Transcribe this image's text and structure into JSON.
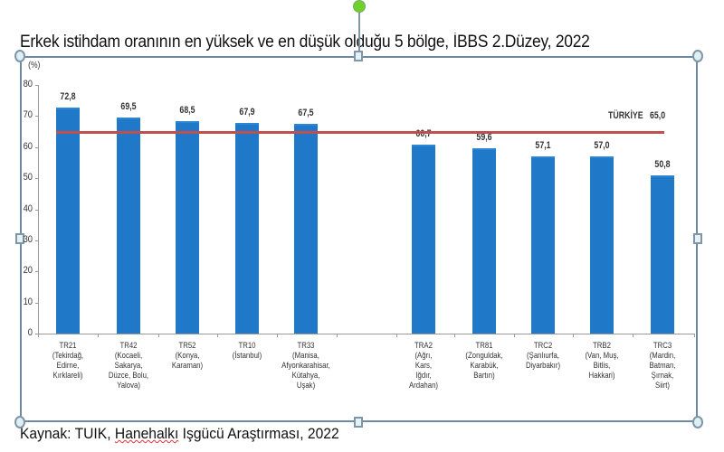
{
  "title": "Erkek istihdam oranının en yüksek ve en düşük olduğu  5 bölge, İBBS 2.Düzey, 2022",
  "source": {
    "prefix": "Kaynak: TUIK, ",
    "underlined": "Hanehalkı",
    "suffix": " Işgücü Araştırması, 2022"
  },
  "colors": {
    "bar": "#1f78c8",
    "reference_line": "#c0504d",
    "selection_border": "#6f8aa0",
    "rotation_handle": "#6fd12a"
  },
  "chart_data": {
    "type": "bar",
    "title": "Erkek istihdam oranının en yüksek ve en düşük olduğu  5 bölge, İBBS 2.Düzey, 2022",
    "xlabel": "",
    "ylabel": "(%)",
    "ylim": [
      0,
      80
    ],
    "yticks": [
      "0",
      "10",
      "20",
      "30",
      "40",
      "50",
      "60",
      "70",
      "80"
    ],
    "grid": false,
    "legend": null,
    "categories": [
      "TR21",
      "TR42",
      "TR52",
      "TR10",
      "TR33",
      "TRA2",
      "TR81",
      "TRC2",
      "TRB2",
      "TRC3"
    ],
    "category_details": [
      [
        "TR21",
        "(Tekirdağ,",
        "Edirne,",
        "Kırklareli)"
      ],
      [
        "TR42",
        "(Kocaeli,",
        "Sakarya,",
        "Düzce, Bolu,",
        "Yalova)"
      ],
      [
        "TR52",
        "(Konya,",
        "Karaman)"
      ],
      [
        "TR10",
        "(İstanbul)"
      ],
      [
        "TR33",
        "(Manisa,",
        "Afyonkarahisar,",
        "Kütahya,",
        "Uşak)"
      ],
      [
        "TRA2",
        "(Ağrı,",
        "Kars,",
        "Iğdır,",
        "Ardahan)"
      ],
      [
        "TR81",
        "(Zonguldak,",
        "Karabük,",
        "Bartın)"
      ],
      [
        "TRC2",
        "(Şanlıurfa,",
        "Diyarbakır)"
      ],
      [
        "TRB2",
        "(Van, Muş,",
        "Bitlis,",
        "Hakkari)"
      ],
      [
        "TRC3",
        "(Mardin,",
        "Batman,",
        "Şırnak,",
        "Siirt)"
      ]
    ],
    "values": [
      72.8,
      69.5,
      68.5,
      67.9,
      67.5,
      60.7,
      59.6,
      57.1,
      57.0,
      50.8
    ],
    "value_labels": [
      "72,8",
      "69,5",
      "68,5",
      "67,9",
      "67,5",
      "60,7",
      "59,6",
      "57,1",
      "57,0",
      "50,8"
    ],
    "annotations": [
      {
        "type": "reference_line",
        "label": "TÜRKİYE",
        "value": 65.0,
        "value_label": "65,0"
      }
    ]
  }
}
